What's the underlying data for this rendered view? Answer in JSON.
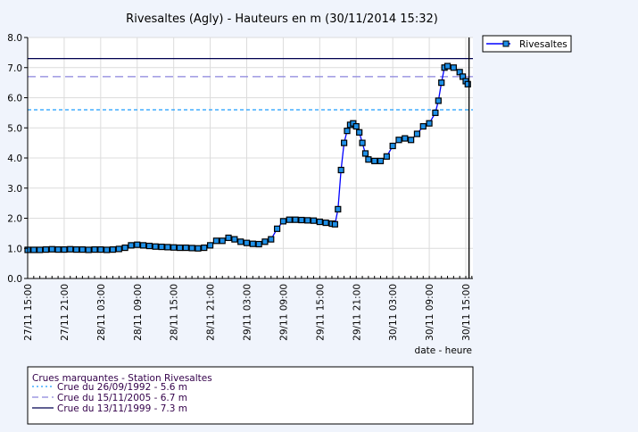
{
  "chart_data": {
    "type": "line",
    "title": "Rivesaltes (Agly) - Hauteurs en m (30/11/2014 15:32)",
    "xlabel": "date - heure",
    "ylabel": "",
    "ylim": [
      0,
      8
    ],
    "yticks": [
      "0.0",
      "1.0",
      "2.0",
      "3.0",
      "4.0",
      "5.0",
      "6.0",
      "7.0",
      "8.0"
    ],
    "xlim": [
      "2014-11-27 15:00",
      "2014-11-30 15:32"
    ],
    "xticks": [
      "27/11  15:00",
      "27/11  21:00",
      "28/11  03:00",
      "28/11  09:00",
      "28/11  15:00",
      "28/11  21:00",
      "29/11  03:00",
      "29/11  09:00",
      "29/11  15:00",
      "29/11  21:00",
      "30/11  03:00",
      "30/11  09:00",
      "30/11  15:00"
    ],
    "grid": true,
    "current_time": "2014-11-30 15:32",
    "legend_position": "top-right",
    "series": [
      {
        "name": "Rivesaltes",
        "color": "#0000ff",
        "marker_color": "#1e90e8",
        "points": [
          [
            "2014-11-27 15:00",
            0.95
          ],
          [
            "2014-11-27 16:00",
            0.95
          ],
          [
            "2014-11-27 17:00",
            0.95
          ],
          [
            "2014-11-27 18:00",
            0.96
          ],
          [
            "2014-11-27 19:00",
            0.97
          ],
          [
            "2014-11-27 20:00",
            0.96
          ],
          [
            "2014-11-27 21:00",
            0.96
          ],
          [
            "2014-11-27 22:00",
            0.97
          ],
          [
            "2014-11-27 23:00",
            0.96
          ],
          [
            "2014-11-28 00:00",
            0.96
          ],
          [
            "2014-11-28 01:00",
            0.95
          ],
          [
            "2014-11-28 02:00",
            0.96
          ],
          [
            "2014-11-28 03:00",
            0.96
          ],
          [
            "2014-11-28 04:00",
            0.95
          ],
          [
            "2014-11-28 05:00",
            0.96
          ],
          [
            "2014-11-28 06:00",
            0.98
          ],
          [
            "2014-11-28 07:00",
            1.02
          ],
          [
            "2014-11-28 08:00",
            1.1
          ],
          [
            "2014-11-28 09:00",
            1.12
          ],
          [
            "2014-11-28 10:00",
            1.1
          ],
          [
            "2014-11-28 11:00",
            1.08
          ],
          [
            "2014-11-28 12:00",
            1.06
          ],
          [
            "2014-11-28 13:00",
            1.05
          ],
          [
            "2014-11-28 14:00",
            1.04
          ],
          [
            "2014-11-28 15:00",
            1.03
          ],
          [
            "2014-11-28 16:00",
            1.02
          ],
          [
            "2014-11-28 17:00",
            1.02
          ],
          [
            "2014-11-28 18:00",
            1.01
          ],
          [
            "2014-11-28 19:00",
            1.0
          ],
          [
            "2014-11-28 20:00",
            1.02
          ],
          [
            "2014-11-28 21:00",
            1.1
          ],
          [
            "2014-11-28 22:00",
            1.25
          ],
          [
            "2014-11-28 23:00",
            1.25
          ],
          [
            "2014-11-29 00:00",
            1.35
          ],
          [
            "2014-11-29 01:00",
            1.3
          ],
          [
            "2014-11-29 02:00",
            1.22
          ],
          [
            "2014-11-29 03:00",
            1.18
          ],
          [
            "2014-11-29 04:00",
            1.15
          ],
          [
            "2014-11-29 05:00",
            1.14
          ],
          [
            "2014-11-29 06:00",
            1.22
          ],
          [
            "2014-11-29 07:00",
            1.3
          ],
          [
            "2014-11-29 08:00",
            1.65
          ],
          [
            "2014-11-29 09:00",
            1.9
          ],
          [
            "2014-11-29 10:00",
            1.95
          ],
          [
            "2014-11-29 11:00",
            1.95
          ],
          [
            "2014-11-29 12:00",
            1.94
          ],
          [
            "2014-11-29 13:00",
            1.93
          ],
          [
            "2014-11-29 14:00",
            1.92
          ],
          [
            "2014-11-29 15:00",
            1.88
          ],
          [
            "2014-11-29 16:00",
            1.85
          ],
          [
            "2014-11-29 17:00",
            1.82
          ],
          [
            "2014-11-29 17:30",
            1.8
          ],
          [
            "2014-11-29 18:00",
            2.3
          ],
          [
            "2014-11-29 18:30",
            3.6
          ],
          [
            "2014-11-29 19:00",
            4.5
          ],
          [
            "2014-11-29 19:30",
            4.9
          ],
          [
            "2014-11-29 20:00",
            5.1
          ],
          [
            "2014-11-29 20:30",
            5.15
          ],
          [
            "2014-11-29 21:00",
            5.05
          ],
          [
            "2014-11-29 21:30",
            4.85
          ],
          [
            "2014-11-29 22:00",
            4.5
          ],
          [
            "2014-11-29 22:30",
            4.15
          ],
          [
            "2014-11-29 23:00",
            3.95
          ],
          [
            "2014-11-30 00:00",
            3.9
          ],
          [
            "2014-11-30 01:00",
            3.9
          ],
          [
            "2014-11-30 02:00",
            4.05
          ],
          [
            "2014-11-30 03:00",
            4.4
          ],
          [
            "2014-11-30 04:00",
            4.6
          ],
          [
            "2014-11-30 05:00",
            4.65
          ],
          [
            "2014-11-30 06:00",
            4.6
          ],
          [
            "2014-11-30 07:00",
            4.8
          ],
          [
            "2014-11-30 08:00",
            5.05
          ],
          [
            "2014-11-30 09:00",
            5.15
          ],
          [
            "2014-11-30 10:00",
            5.5
          ],
          [
            "2014-11-30 10:30",
            5.9
          ],
          [
            "2014-11-30 11:00",
            6.5
          ],
          [
            "2014-11-30 11:30",
            7.0
          ],
          [
            "2014-11-30 12:00",
            7.05
          ],
          [
            "2014-11-30 13:00",
            7.0
          ],
          [
            "2014-11-30 14:00",
            6.85
          ],
          [
            "2014-11-30 14:30",
            6.7
          ],
          [
            "2014-11-30 15:00",
            6.55
          ],
          [
            "2014-11-30 15:20",
            6.45
          ]
        ]
      }
    ],
    "reference_lines": [
      {
        "label": "Crue du 26/09/1992 - 5.6 m",
        "value": 5.6,
        "style": "dotted",
        "color": "#1e9eff"
      },
      {
        "label": "Crue du 15/11/2005 - 6.7 m",
        "value": 6.7,
        "style": "dashed",
        "color": "#8a84dc"
      },
      {
        "label": "Crue du 13/11/1999 - 7.3 m",
        "value": 7.3,
        "style": "solid",
        "color": "#000050"
      }
    ],
    "reference_legend_title": "Crues marquantes - Station Rivesaltes"
  }
}
